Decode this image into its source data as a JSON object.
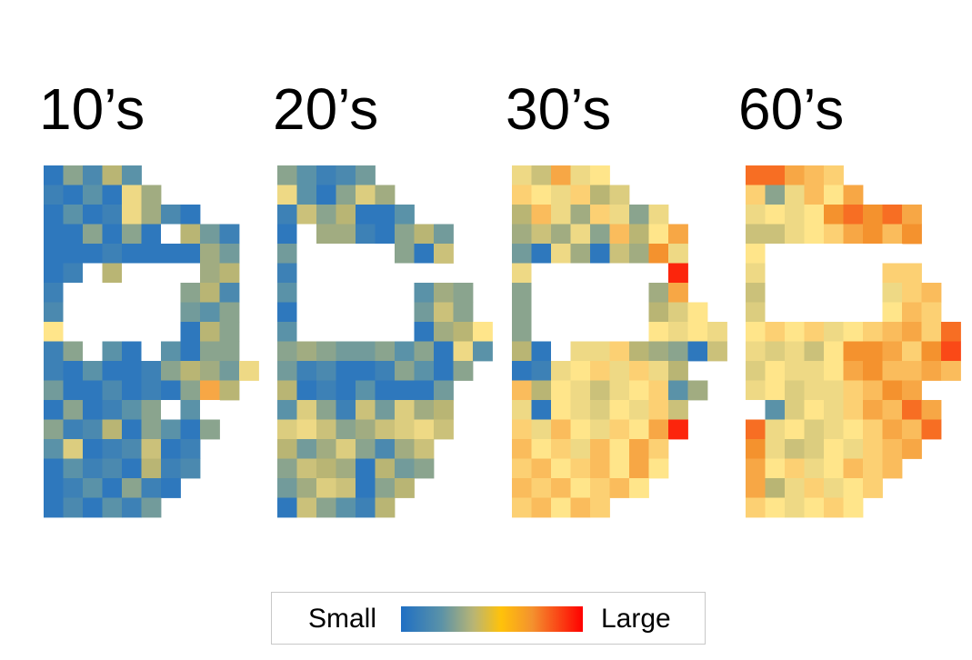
{
  "chart_data": {
    "type": "heatmap",
    "description_labels": [
      "10’s",
      "20’s",
      "30’s",
      "60’s"
    ],
    "panels": [
      {
        "label": "10’s",
        "cells": [
          [
            0.05,
            0.3,
            0.15,
            0.4,
            0.2,
            null,
            null,
            null,
            null,
            null
          ],
          [
            0.1,
            0.05,
            0.2,
            0.05,
            0.55,
            0.35,
            null,
            null,
            null,
            null
          ],
          [
            0.05,
            0.2,
            0.05,
            0.1,
            0.55,
            0.35,
            0.15,
            0.05,
            null,
            null
          ],
          [
            0.05,
            0.05,
            0.3,
            0.05,
            0.3,
            0.05,
            "gap",
            0.4,
            0.25,
            0.1
          ],
          [
            0.05,
            0.05,
            0.05,
            0.1,
            0.05,
            0.05,
            0.05,
            0.05,
            0.35,
            0.25
          ],
          [
            0.05,
            0.1,
            "gap",
            0.4,
            "gap",
            "gap",
            "gap",
            "gap",
            0.35,
            0.4
          ],
          [
            0.1,
            "gap",
            "gap",
            "gap",
            "gap",
            "gap",
            "gap",
            0.3,
            0.4,
            0.15
          ],
          [
            0.15,
            "gap",
            "gap",
            "gap",
            "gap",
            "gap",
            "gap",
            0.25,
            0.2,
            0.3
          ],
          [
            0.6,
            "gap",
            "gap",
            "gap",
            "gap",
            "gap",
            "gap",
            0.05,
            0.4,
            0.3
          ],
          [
            0.1,
            0.3,
            "gap",
            0.2,
            0.05,
            "gap",
            0.2,
            0.05,
            0.3,
            0.3
          ],
          [
            0.1,
            0.05,
            0.2,
            0.05,
            0.05,
            0.1,
            0.3,
            0.4,
            0.35,
            0.25,
            0.55
          ],
          [
            0.25,
            0.05,
            0.05,
            0.15,
            0.05,
            0.1,
            0.05,
            0.3,
            0.75,
            0.4
          ],
          [
            0.05,
            0.3,
            0.05,
            0.1,
            0.2,
            0.3,
            "gap",
            0.2,
            "gap",
            null
          ],
          [
            0.3,
            0.1,
            0.15,
            0.4,
            0.05,
            0.3,
            0.2,
            0.05,
            0.3,
            null
          ],
          [
            0.2,
            0.5,
            0.05,
            0.1,
            0.15,
            0.45,
            0.05,
            0.1,
            null,
            null
          ],
          [
            0.05,
            0.2,
            0.1,
            0.15,
            0.05,
            0.4,
            0.1,
            0.15,
            null,
            null
          ],
          [
            0.05,
            0.1,
            0.2,
            0.05,
            0.3,
            0.1,
            0.05,
            null,
            null,
            null
          ],
          [
            0.05,
            0.15,
            0.05,
            0.2,
            0.1,
            0.25,
            null,
            null,
            null,
            null
          ]
        ]
      },
      {
        "label": "20’s",
        "cells": [
          [
            0.3,
            0.2,
            0.1,
            0.15,
            0.25,
            null,
            null,
            null,
            null,
            null
          ],
          [
            0.55,
            0.2,
            0.05,
            0.3,
            0.5,
            0.35,
            null,
            null,
            null,
            null
          ],
          [
            0.1,
            0.45,
            0.3,
            0.4,
            0.05,
            0.05,
            0.2,
            null,
            null,
            null
          ],
          [
            0.05,
            "gap",
            0.35,
            0.35,
            0.1,
            0.05,
            0.3,
            0.4,
            0.25,
            null
          ],
          [
            0.25,
            "gap",
            "gap",
            "gap",
            "gap",
            "gap",
            0.3,
            0.05,
            0.45,
            null
          ],
          [
            0.1,
            "gap",
            "gap",
            "gap",
            "gap",
            "gap",
            "gap",
            "gap",
            null,
            null
          ],
          [
            0.2,
            "gap",
            "gap",
            "gap",
            "gap",
            "gap",
            "gap",
            0.2,
            0.35,
            0.3
          ],
          [
            0.05,
            "gap",
            "gap",
            "gap",
            "gap",
            "gap",
            "gap",
            0.25,
            0.45,
            0.3
          ],
          [
            0.2,
            "gap",
            "gap",
            "gap",
            "gap",
            "gap",
            "gap",
            0.05,
            0.35,
            0.4,
            0.6
          ],
          [
            0.3,
            0.35,
            0.3,
            0.25,
            0.25,
            0.3,
            0.2,
            0.3,
            0.05,
            0.55,
            0.2
          ],
          [
            0.25,
            0.1,
            0.15,
            0.05,
            0.05,
            0.1,
            0.3,
            0.2,
            0.05,
            0.3
          ],
          [
            0.4,
            0.05,
            0.1,
            0.05,
            0.2,
            0.05,
            0.05,
            0.05,
            0.25,
            null
          ],
          [
            0.2,
            0.5,
            0.3,
            0.1,
            0.45,
            0.25,
            0.5,
            0.35,
            0.4,
            null
          ],
          [
            0.5,
            0.55,
            0.45,
            0.3,
            0.35,
            0.45,
            0.5,
            0.55,
            0.45,
            null
          ],
          [
            0.4,
            0.25,
            0.35,
            0.5,
            0.3,
            0.15,
            0.35,
            0.45,
            null,
            null
          ],
          [
            0.3,
            0.45,
            0.4,
            0.35,
            0.05,
            0.4,
            0.25,
            0.3,
            null,
            null
          ],
          [
            0.25,
            0.35,
            0.5,
            0.45,
            0.05,
            0.3,
            0.4,
            null,
            null,
            null
          ],
          [
            0.05,
            0.45,
            0.3,
            0.2,
            0.1,
            0.4,
            null,
            null,
            null,
            null
          ]
        ]
      },
      {
        "label": "30’s",
        "cells": [
          [
            0.55,
            0.45,
            0.75,
            0.55,
            0.6,
            null,
            null,
            null,
            null,
            null
          ],
          [
            0.65,
            0.6,
            0.55,
            0.65,
            0.4,
            0.5,
            null,
            null,
            null,
            null
          ],
          [
            0.4,
            0.7,
            0.55,
            0.35,
            0.65,
            0.55,
            0.3,
            0.55,
            null,
            null
          ],
          [
            0.35,
            0.45,
            0.35,
            0.55,
            0.3,
            0.7,
            0.4,
            0.6,
            0.75,
            null
          ],
          [
            0.25,
            0.05,
            0.55,
            0.35,
            0.05,
            0.45,
            0.35,
            0.8,
            0.55,
            null
          ],
          [
            0.55,
            "gap",
            "gap",
            "gap",
            "gap",
            "gap",
            "gap",
            "gap",
            0.95,
            null
          ],
          [
            0.3,
            "gap",
            "gap",
            "gap",
            "gap",
            "gap",
            "gap",
            0.35,
            0.75,
            null
          ],
          [
            0.3,
            "gap",
            "gap",
            "gap",
            "gap",
            "gap",
            "gap",
            0.4,
            0.5,
            0.6
          ],
          [
            0.3,
            "gap",
            "gap",
            "gap",
            "gap",
            "gap",
            "gap",
            0.6,
            0.55,
            0.6,
            0.55
          ],
          [
            0.4,
            0.05,
            "gap",
            0.55,
            0.55,
            0.65,
            0.4,
            0.35,
            0.3,
            0.05,
            0.45
          ],
          [
            0.05,
            0.1,
            0.55,
            0.6,
            0.65,
            0.55,
            0.65,
            0.55,
            0.4,
            null
          ],
          [
            0.7,
            0.4,
            0.6,
            0.55,
            0.45,
            0.55,
            0.6,
            0.65,
            0.2,
            0.35
          ],
          [
            0.55,
            0.05,
            0.6,
            0.55,
            0.5,
            0.6,
            0.55,
            0.65,
            0.45,
            null
          ],
          [
            0.65,
            0.55,
            0.7,
            0.6,
            0.55,
            0.65,
            0.6,
            0.75,
            0.95,
            null
          ],
          [
            0.7,
            0.6,
            0.65,
            0.55,
            0.7,
            0.6,
            0.75,
            0.65,
            null,
            null
          ],
          [
            0.65,
            0.7,
            0.6,
            0.65,
            0.7,
            0.6,
            0.75,
            0.6,
            null,
            null
          ],
          [
            0.7,
            0.65,
            0.7,
            0.6,
            0.65,
            0.7,
            0.6,
            null,
            null,
            null
          ],
          [
            0.65,
            0.7,
            0.6,
            0.7,
            0.65,
            null,
            null,
            null,
            null,
            null
          ]
        ]
      },
      {
        "label": "60’s",
        "cells": [
          [
            0.85,
            0.85,
            0.75,
            0.7,
            0.65,
            null,
            null,
            null,
            null,
            null
          ],
          [
            0.65,
            0.3,
            0.55,
            0.7,
            0.6,
            0.75,
            null,
            null,
            null,
            null
          ],
          [
            0.55,
            0.6,
            0.55,
            0.6,
            0.8,
            0.85,
            0.8,
            0.85,
            0.75,
            null
          ],
          [
            0.45,
            0.45,
            0.55,
            0.6,
            0.65,
            0.75,
            0.8,
            0.7,
            0.8,
            null
          ],
          [
            0.6,
            "gap",
            "gap",
            "gap",
            "gap",
            "gap",
            "gap",
            "gap",
            null,
            null
          ],
          [
            0.55,
            "gap",
            "gap",
            "gap",
            "gap",
            "gap",
            "gap",
            0.65,
            0.65,
            null
          ],
          [
            0.45,
            "gap",
            "gap",
            "gap",
            "gap",
            "gap",
            "gap",
            0.55,
            0.65,
            0.7
          ],
          [
            0.5,
            "gap",
            "gap",
            "gap",
            "gap",
            "gap",
            "gap",
            0.6,
            0.7,
            0.65
          ],
          [
            0.6,
            0.65,
            0.6,
            0.65,
            0.55,
            0.6,
            0.65,
            0.7,
            0.75,
            0.65,
            0.85
          ],
          [
            0.55,
            0.5,
            0.55,
            0.45,
            0.6,
            0.8,
            0.8,
            0.75,
            0.65,
            0.8,
            0.9
          ],
          [
            0.5,
            0.6,
            0.55,
            0.55,
            0.6,
            0.75,
            0.8,
            0.7,
            0.7,
            0.75,
            0.7
          ],
          [
            0.55,
            0.6,
            0.5,
            0.55,
            0.55,
            0.65,
            0.7,
            0.8,
            0.75,
            null
          ],
          [
            "gap",
            0.2,
            0.5,
            0.6,
            0.55,
            0.65,
            0.75,
            0.7,
            0.85,
            0.75
          ],
          [
            0.85,
            0.55,
            0.6,
            0.5,
            0.55,
            0.6,
            0.65,
            0.75,
            0.7,
            0.85
          ],
          [
            0.8,
            0.55,
            0.45,
            0.5,
            0.6,
            0.55,
            0.65,
            0.7,
            0.75,
            null
          ],
          [
            0.75,
            0.6,
            0.65,
            0.55,
            0.6,
            0.7,
            0.65,
            0.7,
            null,
            null
          ],
          [
            0.75,
            0.4,
            0.55,
            0.65,
            0.55,
            0.6,
            0.65,
            null,
            null,
            null
          ],
          [
            0.65,
            0.6,
            0.55,
            0.6,
            0.65,
            0.6,
            null,
            null,
            null,
            null
          ]
        ]
      }
    ],
    "legend": {
      "low_label": "Small",
      "high_label": "Large"
    },
    "colorscale": [
      "#1f6fc4",
      "#5a92a8",
      "#b9b574",
      "#ffe58a",
      "#f4922e",
      "#ff0000"
    ]
  }
}
